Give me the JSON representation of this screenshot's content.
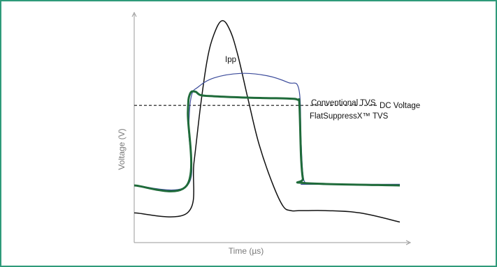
{
  "chart_data": {
    "type": "line",
    "xlabel": "Time (µs)",
    "ylabel": "Voltage (V)",
    "xlim": [
      0,
      100
    ],
    "ylim": [
      0,
      100
    ],
    "ticks": "none",
    "grid": false,
    "legend": "none",
    "reference_lines": [
      {
        "label": "DC Voltage",
        "y": 60,
        "style": "dashed",
        "color": "#111111"
      }
    ],
    "series": [
      {
        "name": "Ipp",
        "color": "#111111",
        "x": [
          0,
          20,
          22.5,
          25,
          27.5,
          30,
          33,
          36,
          39,
          43,
          47,
          52,
          56,
          59,
          62,
          65,
          72,
          85,
          100
        ],
        "y": [
          13,
          13,
          35,
          60,
          80,
          91,
          97,
          93,
          82,
          62,
          43,
          26,
          16,
          14,
          14,
          14,
          14,
          13,
          9
        ]
      },
      {
        "name": "Conventional TVS",
        "color": "#3a4a9a",
        "x": [
          0,
          20,
          20.5,
          21.5,
          24,
          30,
          40,
          50,
          58,
          62,
          62.8,
          63.5,
          64.5,
          66,
          100
        ],
        "y": [
          25,
          25,
          50,
          64,
          68,
          72,
          74,
          73,
          70,
          67,
          45,
          30,
          26,
          25.5,
          25.5
        ]
      },
      {
        "name": "FlatSuppressX™ TVS",
        "color": "#1f6b3a",
        "x": [
          0,
          19.8,
          20.2,
          21,
          23,
          25,
          30,
          40,
          50,
          58,
          61.5,
          62.2,
          62.8,
          63.5,
          64.5,
          100
        ],
        "y": [
          25,
          25,
          57,
          65,
          66,
          64.5,
          64,
          63.5,
          63.2,
          63,
          62.5,
          60,
          38,
          28,
          26,
          25
        ]
      }
    ],
    "annotations": [
      "Ipp",
      "Conventional TVS",
      "FlatSuppressX™ TVS",
      "DC Voltage"
    ]
  }
}
